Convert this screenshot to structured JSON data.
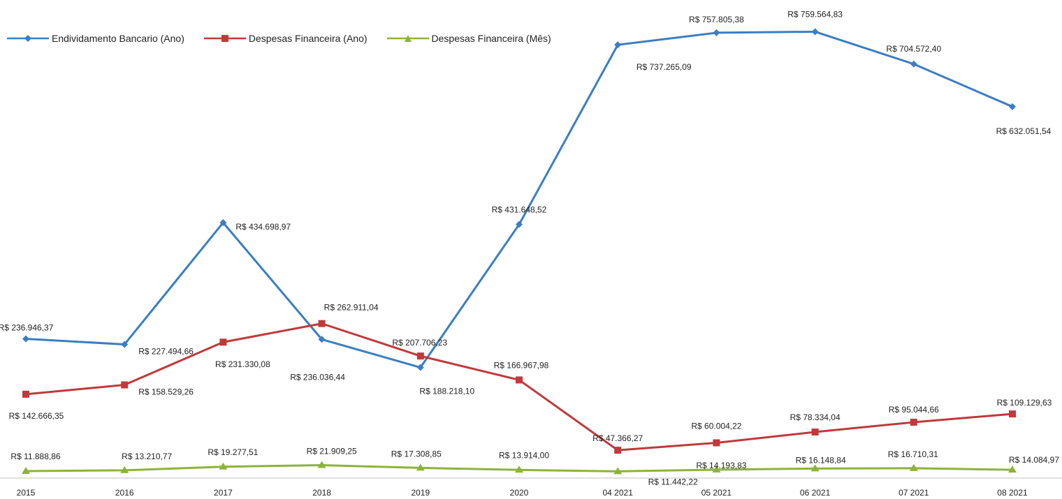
{
  "chart_data": {
    "type": "line",
    "title": "",
    "xlabel": "",
    "ylabel": "",
    "categories": [
      "2015",
      "2016",
      "2017",
      "2018",
      "2019",
      "2020",
      "04 2021",
      "05 2021",
      "06 2021",
      "07 2021",
      "08 2021"
    ],
    "ylim": [
      0,
      800000
    ],
    "grid": false,
    "legend_position": "top-left",
    "series": [
      {
        "name": "Endividamento Bancario (Ano)",
        "color": "#3b7dc4",
        "marker": "diamond",
        "values": [
          236946.37,
          227494.66,
          434698.97,
          236036.44,
          188218.1,
          431648.52,
          737265.09,
          757805.38,
          759564.83,
          704572.4,
          632051.54
        ],
        "labels": [
          "R$ 236.946,37",
          "R$ 227.494,66",
          "R$ 434.698,97",
          "R$ 236.036,44",
          "R$ 188.218,10",
          "R$ 431.648,52",
          "R$ 737.265,09",
          "R$ 757.805,38",
          "R$ 759.564,83",
          "R$ 704.572,40",
          "R$ 632.051,54"
        ]
      },
      {
        "name": "Despesas Financeira (Ano)",
        "color": "#c0393b",
        "marker": "square",
        "values": [
          142666.35,
          158529.26,
          231330.08,
          262911.04,
          207706.23,
          166967.98,
          47366.27,
          60004.22,
          78334.04,
          95044.66,
          109129.63
        ],
        "labels": [
          "R$ 142.666,35",
          "R$ 158.529,26",
          "R$ 231.330,08",
          "R$ 262.911,04",
          "R$ 207.706,23",
          "R$ 166.967,98",
          "R$ 47.366,27",
          "R$ 60.004,22",
          "R$ 78.334,04",
          "R$ 95.044,66",
          "R$ 109.129,63"
        ]
      },
      {
        "name": "Despesas Financeira (Mês)",
        "color": "#8db33a",
        "marker": "triangle",
        "values": [
          11888.86,
          13210.77,
          19277.51,
          21909.25,
          17308.85,
          13914.0,
          11442.22,
          14193.83,
          16148.84,
          16710.31,
          14084.97
        ],
        "labels": [
          "R$ 11.888,86",
          "R$ 13.210,77",
          "R$ 19.277,51",
          "R$ 21.909,25",
          "R$ 17.308,85",
          "R$ 13.914,00",
          "R$ 11.442,22",
          "R$ 14.193,83",
          "R$ 16.148,84",
          "R$ 16.710,31",
          "R$ 14.084,97"
        ]
      }
    ]
  }
}
